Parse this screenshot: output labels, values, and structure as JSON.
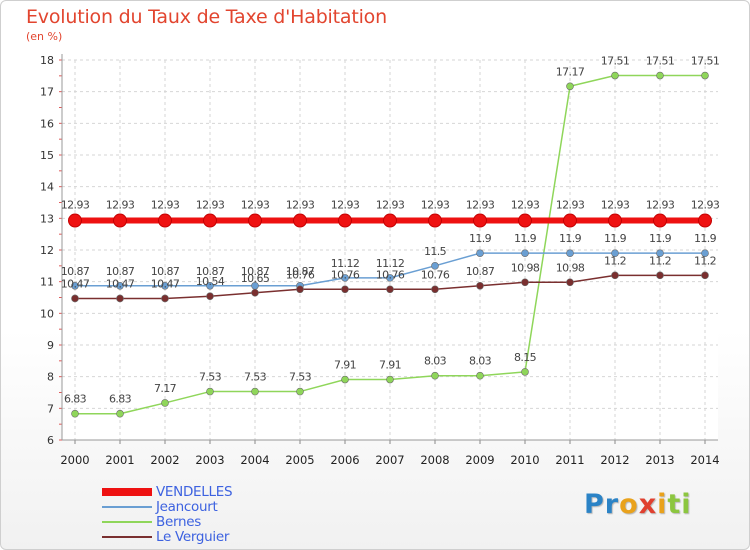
{
  "title": "Evolution du Taux de Taxe d'Habitation",
  "subtitle": "(en %)",
  "logo": {
    "letters": [
      "P",
      "r",
      "o",
      "x",
      "i",
      "t",
      "i"
    ],
    "colors": [
      "#2b83c6",
      "#2b83c6",
      "#e9a21c",
      "#e0402f",
      "#e9a21c",
      "#8cc63f",
      "#8cc63f"
    ]
  },
  "chart_data": {
    "type": "line",
    "x": [
      "2000",
      "2001",
      "2002",
      "2003",
      "2004",
      "2005",
      "2006",
      "2007",
      "2008",
      "2009",
      "2010",
      "2011",
      "2012",
      "2013",
      "2014"
    ],
    "ylim": [
      6,
      18
    ],
    "yticks": [
      "6",
      "7",
      "8",
      "9",
      "10",
      "11",
      "12",
      "13",
      "14",
      "15",
      "16",
      "17",
      "18"
    ],
    "grid": true,
    "legend_position": "bottom-left",
    "series": [
      {
        "name": "VENDELLES",
        "color": "#ee1111",
        "width": 6,
        "marker": 6.5,
        "label_offset": -12,
        "values": [
          12.93,
          12.93,
          12.93,
          12.93,
          12.93,
          12.93,
          12.93,
          12.93,
          12.93,
          12.93,
          12.93,
          12.93,
          12.93,
          12.93,
          12.93
        ],
        "labels": [
          "12.93",
          "12.93",
          "12.93",
          "12.93",
          "12.93",
          "12.93",
          "12.93",
          "12.93",
          "12.93",
          "12.93",
          "12.93",
          "12.93",
          "12.93",
          "12.93",
          "12.93"
        ]
      },
      {
        "name": "Jeancourt",
        "color": "#6a9fd3",
        "width": 1.5,
        "marker": 3.5,
        "label_offset": -11,
        "values": [
          10.87,
          10.87,
          10.87,
          10.87,
          10.87,
          10.87,
          11.12,
          11.12,
          11.5,
          11.9,
          11.9,
          11.9,
          11.9,
          11.9,
          11.9
        ],
        "labels": [
          "10.87",
          "10.87",
          "10.87",
          "10.87",
          "10.87",
          "10.87",
          "11.12",
          "11.12",
          "11.5",
          "11.9",
          "11.9",
          "11.9",
          "11.9",
          "11.9",
          "11.9"
        ]
      },
      {
        "name": "Bernes",
        "color": "#8fd65a",
        "width": 1.5,
        "marker": 3.5,
        "label_offset": -11,
        "values": [
          6.83,
          6.83,
          7.17,
          7.53,
          7.53,
          7.53,
          7.91,
          7.91,
          8.03,
          8.03,
          8.15,
          17.17,
          17.51,
          17.51,
          17.51
        ],
        "labels": [
          "6.83",
          "6.83",
          "7.17",
          "7.53",
          "7.53",
          "7.53",
          "7.91",
          "7.91",
          "8.03",
          "8.03",
          "8.15",
          "17.17",
          "17.51",
          "17.51",
          "17.51"
        ]
      },
      {
        "name": "Le Verguier",
        "color": "#7a2f2f",
        "width": 1.5,
        "marker": 3.5,
        "label_offset": -11,
        "values": [
          10.47,
          10.47,
          10.47,
          10.54,
          10.65,
          10.76,
          10.76,
          10.76,
          10.76,
          10.87,
          10.98,
          10.98,
          11.2,
          11.2,
          11.2
        ],
        "labels": [
          "10.47",
          "10.47",
          "10.47",
          "10.54",
          "10.65",
          "10.76",
          "10.76",
          "10.76",
          "10.76",
          "10.87",
          "10.98",
          "10.98",
          "11.2",
          "11.2",
          "11.2"
        ]
      }
    ]
  }
}
